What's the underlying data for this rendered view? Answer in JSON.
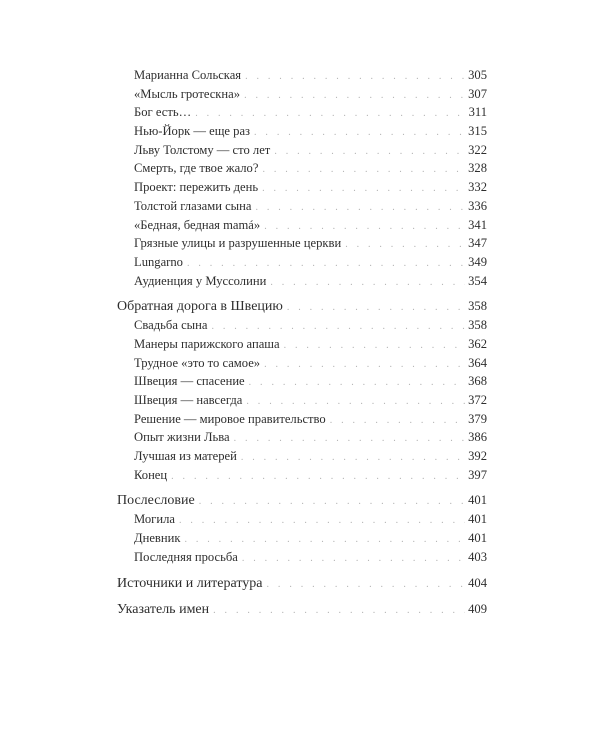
{
  "toc": [
    {
      "title": "Марианна Сольская",
      "page": "305",
      "level": "sub"
    },
    {
      "title": "«Мысль гротескна»",
      "page": "307",
      "level": "sub"
    },
    {
      "title": "Бог есть…",
      "page": "311",
      "level": "sub"
    },
    {
      "title": "Нью-Йорк — еще раз",
      "page": "315",
      "level": "sub"
    },
    {
      "title": "Льву Толстому — сто лет",
      "page": "322",
      "level": "sub"
    },
    {
      "title": "Смерть, где твое жало?",
      "page": "328",
      "level": "sub"
    },
    {
      "title": "Проект: пережить день",
      "page": "332",
      "level": "sub"
    },
    {
      "title": "Толстой глазами сына",
      "page": "336",
      "level": "sub"
    },
    {
      "title": "«Бедная, бедная mamá»",
      "page": "341",
      "level": "sub"
    },
    {
      "title": "Грязные улицы и разрушенные церкви",
      "page": "347",
      "level": "sub"
    },
    {
      "title": "Lungarno",
      "page": "349",
      "level": "sub"
    },
    {
      "title": "Аудиенция у Муссолини",
      "page": "354",
      "level": "sub"
    },
    {
      "title": "Обратная дорога в Швецию",
      "page": "358",
      "level": "main"
    },
    {
      "title": "Свадьба сына",
      "page": "358",
      "level": "sub"
    },
    {
      "title": "Манеры парижского апаша",
      "page": "362",
      "level": "sub"
    },
    {
      "title": "Трудное «это то самое»",
      "page": "364",
      "level": "sub"
    },
    {
      "title": "Швеция — спасение",
      "page": "368",
      "level": "sub"
    },
    {
      "title": "Швеция — навсегда",
      "page": "372",
      "level": "sub"
    },
    {
      "title": "Решение — мировое правительство",
      "page": "379",
      "level": "sub"
    },
    {
      "title": "Опыт жизни Льва",
      "page": "386",
      "level": "sub"
    },
    {
      "title": "Лучшая из матерей",
      "page": "392",
      "level": "sub"
    },
    {
      "title": "Конец",
      "page": "397",
      "level": "sub"
    },
    {
      "title": "Послесловие",
      "page": "401",
      "level": "main"
    },
    {
      "title": "Могила",
      "page": "401",
      "level": "sub"
    },
    {
      "title": "Дневник",
      "page": "401",
      "level": "sub"
    },
    {
      "title": "Последняя просьба",
      "page": "403",
      "level": "sub"
    },
    {
      "title": "Источники и литература",
      "page": "404",
      "level": "main"
    },
    {
      "title": "Указатель имен",
      "page": "409",
      "level": "main"
    }
  ]
}
